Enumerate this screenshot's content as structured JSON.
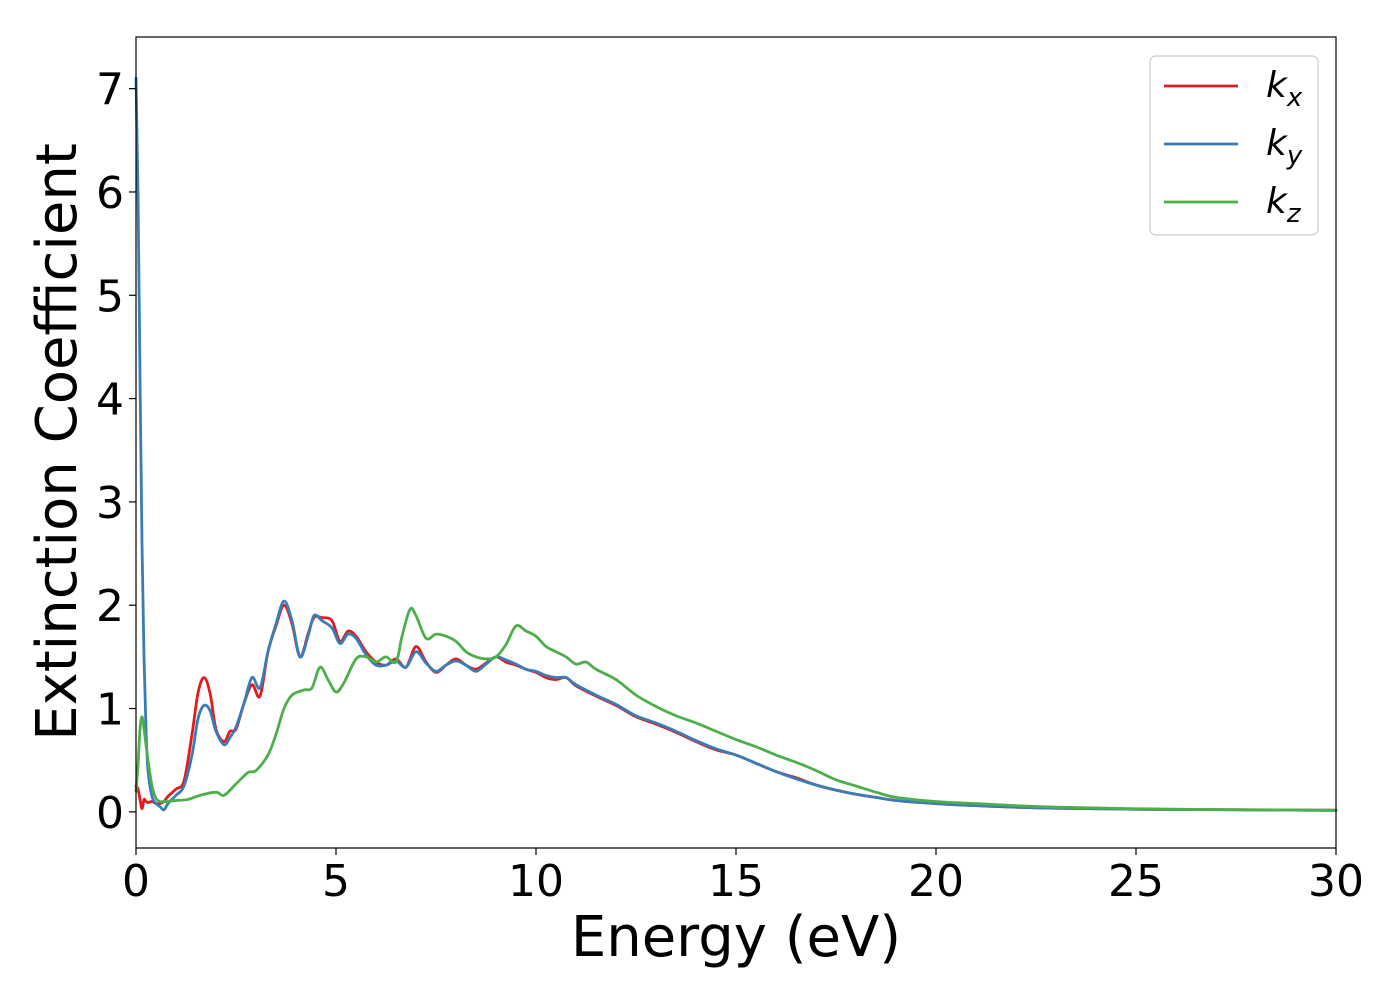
{
  "chart_data": {
    "type": "line",
    "xlabel": "Energy (eV)",
    "ylabel": "Extinction Coefficient",
    "xlim": [
      0,
      30
    ],
    "ylim": [
      -0.35,
      7.5
    ],
    "xticks": [
      "0",
      "5",
      "10",
      "15",
      "20",
      "25",
      "30"
    ],
    "yticks": [
      "0",
      "1",
      "2",
      "3",
      "4",
      "5",
      "6",
      "7"
    ],
    "grid": false,
    "legend_position": "top-right",
    "series": [
      {
        "name": "kx",
        "label_main": "k",
        "label_sub": "x",
        "color": "#e41a1c",
        "x": [
          0,
          0.05,
          0.1,
          0.15,
          0.2,
          0.25,
          0.3,
          0.4,
          0.5,
          0.6,
          0.7,
          0.8,
          1.0,
          1.2,
          1.4,
          1.55,
          1.7,
          1.85,
          2.0,
          2.2,
          2.35,
          2.5,
          2.7,
          2.9,
          3.1,
          3.3,
          3.5,
          3.7,
          3.9,
          4.1,
          4.3,
          4.45,
          4.65,
          4.9,
          5.1,
          5.3,
          5.5,
          5.75,
          6.0,
          6.25,
          6.5,
          6.75,
          7.0,
          7.25,
          7.5,
          7.75,
          8.0,
          8.25,
          8.5,
          8.75,
          9.0,
          9.25,
          9.5,
          9.75,
          10.0,
          10.25,
          10.5,
          10.75,
          11.0,
          11.5,
          12.0,
          12.5,
          13.0,
          13.5,
          14.0,
          14.5,
          15.0,
          15.5,
          16.0,
          16.5,
          17.0,
          17.5,
          18.0,
          18.5,
          19.0,
          20.0,
          21.0,
          22.0,
          23.0,
          25.0,
          27.5,
          30.0
        ],
        "y": [
          0.25,
          0.22,
          0.12,
          0.03,
          0.12,
          0.1,
          0.09,
          0.1,
          0.08,
          0.08,
          0.1,
          0.15,
          0.22,
          0.3,
          0.75,
          1.15,
          1.3,
          1.15,
          0.8,
          0.68,
          0.78,
          0.8,
          1.05,
          1.23,
          1.12,
          1.55,
          1.8,
          2.0,
          1.82,
          1.5,
          1.72,
          1.88,
          1.88,
          1.85,
          1.65,
          1.75,
          1.7,
          1.55,
          1.45,
          1.42,
          1.48,
          1.4,
          1.6,
          1.45,
          1.35,
          1.42,
          1.48,
          1.42,
          1.38,
          1.44,
          1.5,
          1.45,
          1.42,
          1.38,
          1.35,
          1.3,
          1.28,
          1.3,
          1.22,
          1.12,
          1.03,
          0.92,
          0.85,
          0.77,
          0.68,
          0.6,
          0.55,
          0.47,
          0.39,
          0.33,
          0.26,
          0.21,
          0.17,
          0.14,
          0.11,
          0.08,
          0.06,
          0.045,
          0.035,
          0.025,
          0.02,
          0.015
        ]
      },
      {
        "name": "ky",
        "label_main": "k",
        "label_sub": "y",
        "color": "#377eb8",
        "x": [
          0,
          0.05,
          0.1,
          0.15,
          0.2,
          0.25,
          0.3,
          0.4,
          0.5,
          0.6,
          0.7,
          0.8,
          1.0,
          1.2,
          1.4,
          1.55,
          1.7,
          1.85,
          2.0,
          2.2,
          2.35,
          2.5,
          2.7,
          2.9,
          3.1,
          3.3,
          3.5,
          3.7,
          3.9,
          4.1,
          4.3,
          4.45,
          4.65,
          4.9,
          5.1,
          5.3,
          5.5,
          5.75,
          6.0,
          6.25,
          6.5,
          6.75,
          7.0,
          7.25,
          7.5,
          7.75,
          8.0,
          8.25,
          8.5,
          8.75,
          9.0,
          9.25,
          9.5,
          9.75,
          10.0,
          10.25,
          10.5,
          10.75,
          11.0,
          11.5,
          12.0,
          12.5,
          13.0,
          13.5,
          14.0,
          14.5,
          15.0,
          15.5,
          16.0,
          16.5,
          17.0,
          17.5,
          18.0,
          18.5,
          19.0,
          20.0,
          21.0,
          22.0,
          23.0,
          25.0,
          27.5,
          30.0
        ],
        "y": [
          7.1,
          6.0,
          4.2,
          2.6,
          1.5,
          0.8,
          0.4,
          0.15,
          0.08,
          0.05,
          0.02,
          0.08,
          0.16,
          0.25,
          0.55,
          0.9,
          1.03,
          0.98,
          0.78,
          0.65,
          0.72,
          0.82,
          1.05,
          1.3,
          1.2,
          1.55,
          1.82,
          2.04,
          1.85,
          1.5,
          1.7,
          1.9,
          1.85,
          1.78,
          1.63,
          1.72,
          1.68,
          1.52,
          1.42,
          1.42,
          1.46,
          1.4,
          1.55,
          1.44,
          1.36,
          1.42,
          1.46,
          1.42,
          1.36,
          1.43,
          1.5,
          1.47,
          1.43,
          1.38,
          1.36,
          1.32,
          1.3,
          1.3,
          1.23,
          1.13,
          1.04,
          0.93,
          0.86,
          0.78,
          0.69,
          0.61,
          0.55,
          0.47,
          0.39,
          0.32,
          0.26,
          0.21,
          0.17,
          0.14,
          0.11,
          0.08,
          0.06,
          0.045,
          0.035,
          0.025,
          0.02,
          0.015
        ]
      },
      {
        "name": "kz",
        "label_main": "k",
        "label_sub": "z",
        "color": "#4daf4a",
        "x": [
          0,
          0.05,
          0.1,
          0.15,
          0.2,
          0.3,
          0.4,
          0.5,
          0.6,
          0.7,
          0.8,
          1.0,
          1.3,
          1.6,
          2.0,
          2.2,
          2.5,
          2.8,
          3.0,
          3.3,
          3.5,
          3.7,
          3.9,
          4.2,
          4.4,
          4.6,
          4.8,
          5.0,
          5.2,
          5.5,
          5.75,
          6.0,
          6.25,
          6.5,
          6.65,
          6.85,
          7.0,
          7.25,
          7.5,
          7.75,
          8.0,
          8.25,
          8.5,
          8.75,
          9.0,
          9.25,
          9.5,
          9.75,
          10.0,
          10.25,
          10.5,
          10.75,
          11.0,
          11.25,
          11.5,
          12.0,
          12.5,
          13.0,
          13.5,
          14.0,
          14.5,
          15.0,
          15.5,
          16.0,
          16.5,
          17.0,
          17.5,
          18.0,
          18.5,
          19.0,
          20.0,
          21.0,
          22.0,
          23.0,
          25.0,
          27.5,
          30.0
        ],
        "y": [
          0.2,
          0.45,
          0.8,
          0.92,
          0.8,
          0.5,
          0.25,
          0.13,
          0.1,
          0.1,
          0.1,
          0.11,
          0.12,
          0.16,
          0.19,
          0.16,
          0.27,
          0.38,
          0.4,
          0.55,
          0.75,
          1.0,
          1.13,
          1.18,
          1.2,
          1.4,
          1.28,
          1.16,
          1.25,
          1.48,
          1.5,
          1.45,
          1.5,
          1.45,
          1.7,
          1.96,
          1.9,
          1.68,
          1.72,
          1.7,
          1.65,
          1.55,
          1.5,
          1.48,
          1.5,
          1.62,
          1.8,
          1.75,
          1.7,
          1.6,
          1.55,
          1.5,
          1.43,
          1.45,
          1.38,
          1.28,
          1.13,
          1.02,
          0.93,
          0.86,
          0.78,
          0.7,
          0.63,
          0.55,
          0.48,
          0.4,
          0.31,
          0.25,
          0.19,
          0.14,
          0.1,
          0.08,
          0.06,
          0.045,
          0.03,
          0.02,
          0.015
        ]
      }
    ]
  }
}
